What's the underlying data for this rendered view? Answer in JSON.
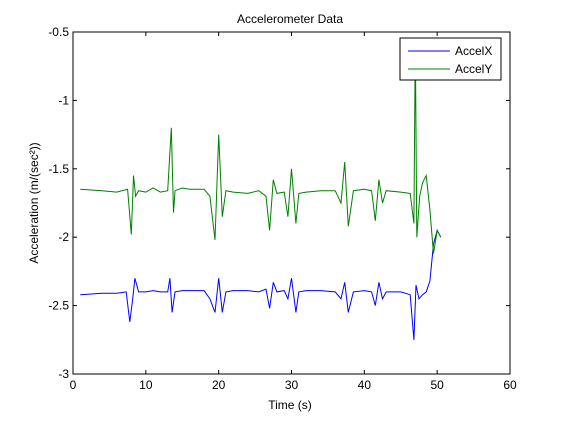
{
  "chart_data": {
    "type": "line",
    "title": "Accelerometer Data",
    "xlabel": "Time (s)",
    "ylabel": "Acceleration (m/(sec²))",
    "xlim": [
      0,
      60
    ],
    "ylim": [
      -3,
      -0.5
    ],
    "x_ticks": [
      0,
      10,
      20,
      30,
      40,
      50,
      60
    ],
    "y_ticks": [
      -0.5,
      -1,
      -1.5,
      -2,
      -2.5,
      -3
    ],
    "x_tick_labels": [
      "0",
      "10",
      "20",
      "30",
      "40",
      "50",
      "60"
    ],
    "y_tick_labels": [
      "-0.5",
      "-1",
      "-1.5",
      "-2",
      "-2.5",
      "-3"
    ],
    "grid": false,
    "legend_position": "top-right",
    "series": [
      {
        "name": "AccelX",
        "color": "#0000ff",
        "x": [
          1,
          4,
          6,
          7.3,
          7.8,
          8.2,
          8.5,
          9,
          10,
          11,
          12,
          13,
          13.3,
          13.6,
          14,
          15,
          16,
          18,
          18.8,
          19.5,
          20,
          20.5,
          21,
          22,
          24,
          25.5,
          26.5,
          27,
          27.5,
          28,
          29,
          29.5,
          30,
          30.6,
          31,
          32,
          34,
          36,
          36.8,
          37.3,
          37.8,
          38.5,
          40,
          41,
          41.5,
          42,
          42.5,
          43,
          45,
          46.3,
          46.8,
          47.1,
          47.5,
          48,
          48.5,
          49,
          49.5,
          50,
          50.5
        ],
        "values": [
          -2.42,
          -2.41,
          -2.41,
          -2.4,
          -2.62,
          -2.45,
          -2.3,
          -2.4,
          -2.4,
          -2.39,
          -2.4,
          -2.4,
          -2.3,
          -2.55,
          -2.4,
          -2.39,
          -2.39,
          -2.39,
          -2.45,
          -2.55,
          -2.3,
          -2.55,
          -2.4,
          -2.39,
          -2.39,
          -2.4,
          -2.38,
          -2.52,
          -2.33,
          -2.4,
          -2.39,
          -2.45,
          -2.3,
          -2.55,
          -2.4,
          -2.39,
          -2.39,
          -2.4,
          -2.45,
          -2.33,
          -2.55,
          -2.4,
          -2.39,
          -2.4,
          -2.5,
          -2.33,
          -2.45,
          -2.4,
          -2.4,
          -2.42,
          -2.75,
          -2.35,
          -2.45,
          -2.42,
          -2.4,
          -2.32,
          -2.05,
          -1.95,
          -2.0
        ]
      },
      {
        "name": "AccelY",
        "color": "#008000",
        "x": [
          1,
          4,
          6,
          7.5,
          8,
          8.3,
          8.6,
          9,
          10,
          11,
          12,
          13,
          13.5,
          13.8,
          14,
          15,
          16,
          18,
          18.8,
          19.5,
          20,
          20.5,
          21,
          22,
          24,
          25.5,
          26.5,
          27,
          27.5,
          28,
          29,
          29.5,
          30,
          30.6,
          31,
          32,
          34,
          36,
          36.8,
          37.3,
          37.8,
          38.5,
          40,
          41,
          41.5,
          42,
          42.5,
          43,
          45,
          46.3,
          46.8,
          47.0,
          47.2,
          47.6,
          48,
          48.5,
          49,
          49.5,
          50,
          50.5
        ],
        "values": [
          -1.65,
          -1.66,
          -1.67,
          -1.65,
          -1.98,
          -1.55,
          -1.7,
          -1.66,
          -1.67,
          -1.64,
          -1.67,
          -1.66,
          -1.2,
          -1.82,
          -1.66,
          -1.64,
          -1.65,
          -1.65,
          -1.7,
          -2.02,
          -1.25,
          -1.85,
          -1.66,
          -1.67,
          -1.68,
          -1.66,
          -1.7,
          -1.95,
          -1.58,
          -1.68,
          -1.67,
          -1.85,
          -1.5,
          -1.9,
          -1.68,
          -1.67,
          -1.66,
          -1.66,
          -1.75,
          -1.45,
          -1.92,
          -1.66,
          -1.65,
          -1.66,
          -1.88,
          -1.58,
          -1.75,
          -1.66,
          -1.67,
          -1.68,
          -1.9,
          -0.55,
          -2.0,
          -1.7,
          -1.6,
          -1.55,
          -1.8,
          -2.12,
          -1.95,
          -2.0
        ]
      }
    ]
  }
}
